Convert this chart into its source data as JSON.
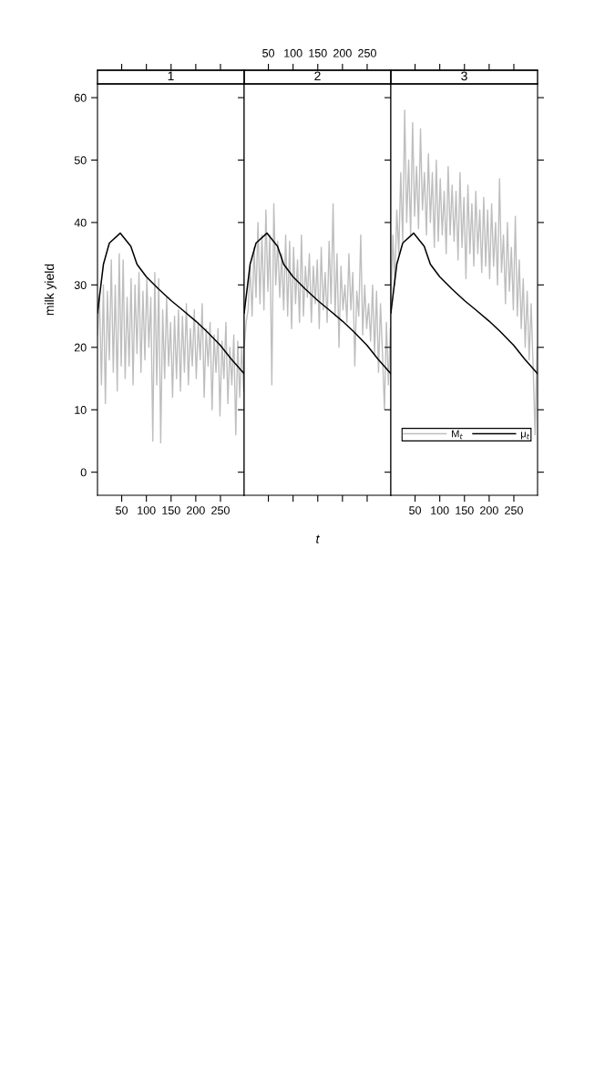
{
  "chart_data": [
    {
      "type": "line",
      "title": "1",
      "ylabel": "milk yield",
      "xlim": [
        1,
        298
      ],
      "ylim": [
        -3.7,
        62.2
      ],
      "xticks": [
        50,
        100,
        150,
        200,
        250
      ],
      "yticks": [
        0,
        10,
        20,
        30,
        40,
        50,
        60
      ],
      "grid": false,
      "legend": false,
      "series": [
        {
          "color": "#bebebe",
          "x": [
            1,
            5,
            9,
            13,
            17,
            21,
            25,
            29,
            33,
            37,
            41,
            45,
            49,
            53,
            57,
            61,
            65,
            69,
            73,
            77,
            81,
            85,
            89,
            93,
            97,
            101,
            105,
            109,
            113,
            117,
            121,
            125,
            129,
            133,
            137,
            141,
            145,
            149,
            153,
            157,
            161,
            165,
            169,
            173,
            177,
            181,
            185,
            189,
            193,
            197,
            201,
            205,
            209,
            213,
            217,
            221,
            225,
            229,
            233,
            237,
            241,
            245,
            249,
            253,
            257,
            261,
            265,
            269,
            273,
            277,
            281,
            285,
            289,
            293,
            297
          ],
          "values": [
            22,
            28,
            14,
            30,
            11,
            29,
            18,
            34,
            16,
            30,
            13,
            35,
            17,
            34,
            15,
            28,
            17,
            31,
            14,
            30,
            19,
            32,
            16,
            29,
            18,
            31,
            20,
            28,
            5,
            32,
            14,
            31,
            4.7,
            26,
            15,
            28,
            17,
            24,
            12,
            25,
            15,
            26,
            13,
            25,
            16,
            27,
            14,
            23,
            17,
            26,
            15,
            24,
            18,
            27,
            12,
            23,
            17,
            24,
            10,
            22,
            16,
            23,
            9,
            21,
            15,
            24,
            11,
            20,
            14,
            22,
            6,
            21,
            12,
            20,
            13
          ]
        },
        {
          "color": "#000000",
          "x": [
            1,
            13,
            25,
            47,
            68.5,
            81,
            100,
            124,
            150,
            173,
            200,
            223,
            250,
            272,
            298
          ],
          "values": [
            25.5,
            33.3,
            36.7,
            38.3,
            36.2,
            33.3,
            31.3,
            29.4,
            27.5,
            26,
            24.2,
            22.5,
            20.3,
            18.1,
            15.8
          ]
        }
      ]
    },
    {
      "type": "line",
      "title": "2",
      "xlabel": "t",
      "xlim": [
        1,
        298
      ],
      "xticks": [
        50,
        100,
        150,
        200,
        250
      ],
      "ylim": [
        -3.7,
        62.2
      ],
      "yticks": [
        0,
        10,
        20,
        30,
        40,
        50,
        60
      ],
      "tick_labels": "x",
      "grid": false,
      "legend": false,
      "series": [
        {
          "color": "#bebebe",
          "x": [
            1,
            5,
            9,
            13,
            17,
            21,
            25,
            29,
            33,
            37,
            41,
            45,
            49,
            53,
            57,
            61,
            65,
            69,
            73,
            77,
            81,
            85,
            89,
            93,
            97,
            101,
            105,
            109,
            113,
            117,
            121,
            125,
            129,
            133,
            137,
            141,
            145,
            149,
            153,
            157,
            161,
            165,
            169,
            173,
            177,
            181,
            185,
            189,
            193,
            197,
            201,
            205,
            209,
            213,
            217,
            221,
            225,
            229,
            233,
            237,
            241,
            245,
            249,
            253,
            257,
            261,
            265,
            269,
            273,
            277,
            281,
            285,
            289,
            293,
            297
          ],
          "values": [
            20,
            24,
            26,
            33,
            25,
            36,
            28,
            40,
            27,
            38,
            26,
            42,
            29,
            38,
            14,
            43,
            30,
            37,
            28,
            35,
            26,
            38,
            25,
            37,
            23,
            36,
            27,
            34,
            24,
            38,
            25,
            33,
            28,
            35,
            24,
            33,
            27,
            34,
            23,
            36,
            26,
            32,
            24,
            37,
            27,
            43,
            25,
            35,
            20,
            33,
            26,
            30,
            24,
            35,
            26,
            32,
            17,
            29,
            25,
            38,
            22,
            30,
            23,
            27,
            21,
            30,
            19,
            29,
            16,
            27,
            19,
            10,
            24,
            14,
            23
          ]
        },
        {
          "color": "#000000",
          "x": [
            1,
            13,
            25,
            47,
            68.5,
            81,
            100,
            124,
            150,
            173,
            200,
            223,
            250,
            272,
            298
          ],
          "values": [
            25.5,
            33.3,
            36.7,
            38.3,
            36.2,
            33.3,
            31.3,
            29.4,
            27.5,
            26,
            24.2,
            22.5,
            20.3,
            18.1,
            15.8
          ]
        }
      ]
    },
    {
      "type": "line",
      "title": "3",
      "xlim": [
        1,
        298
      ],
      "ylim": [
        -3.7,
        62.2
      ],
      "xticks": [
        50,
        100,
        150,
        200,
        250
      ],
      "yticks": [
        0,
        10,
        20,
        30,
        40,
        50,
        60
      ],
      "tick_labels": "x",
      "grid": false,
      "legend": "bottom right",
      "series": [
        {
          "name": "M$_{t}$",
          "color": "#bebebe",
          "x": [
            1,
            5,
            9,
            13,
            17,
            21,
            25,
            29,
            33,
            37,
            41,
            45,
            49,
            53,
            57,
            61,
            65,
            69,
            73,
            77,
            81,
            85,
            89,
            93,
            97,
            101,
            105,
            109,
            113,
            117,
            121,
            125,
            129,
            133,
            137,
            141,
            145,
            149,
            153,
            157,
            161,
            165,
            169,
            173,
            177,
            181,
            185,
            189,
            193,
            197,
            201,
            205,
            209,
            213,
            217,
            221,
            225,
            229,
            233,
            237,
            241,
            245,
            249,
            253,
            257,
            261,
            265,
            269,
            273,
            277,
            281,
            285,
            289,
            293,
            297
          ],
          "values": [
            26,
            38,
            30,
            42,
            35,
            48,
            37,
            58,
            40,
            50,
            38,
            56,
            41,
            49,
            39,
            55,
            42,
            48,
            38,
            51,
            40,
            48,
            36,
            50,
            37,
            47,
            38,
            45,
            35,
            49,
            38,
            46,
            37,
            45,
            34,
            48,
            36,
            44,
            31,
            46,
            35,
            43,
            33,
            45,
            35,
            42,
            32,
            44,
            33,
            42,
            31,
            43,
            33,
            40,
            30,
            47,
            32,
            38,
            27,
            40,
            29,
            36,
            26,
            41,
            25,
            34,
            23,
            31,
            20,
            29,
            18,
            27,
            17,
            6,
            20
          ]
        },
        {
          "name": "μ$_{t}$",
          "color": "#000000",
          "x": [
            1,
            13,
            25,
            47,
            68.5,
            81,
            100,
            124,
            150,
            173,
            200,
            223,
            250,
            272,
            298
          ],
          "values": [
            25.5,
            33.3,
            36.7,
            38.3,
            36.2,
            33.3,
            31.3,
            29.4,
            27.5,
            26,
            24.2,
            22.5,
            20.3,
            18.1,
            15.8
          ]
        }
      ]
    }
  ]
}
